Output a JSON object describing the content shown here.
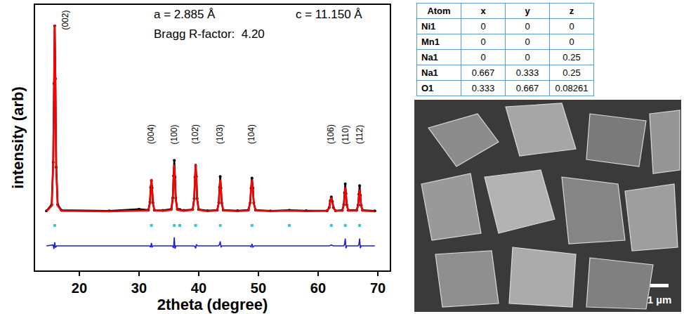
{
  "chart_data": {
    "type": "line",
    "xlabel": "2theta (degree)",
    "ylabel": "intensity (arb)",
    "annotations": [
      "a = 2.885 Å",
      "c = 11.150 Å",
      "Bragg R-factor:  4.20"
    ],
    "xlim": [
      12.6,
      72
    ],
    "xticks": [
      20,
      30,
      40,
      50,
      60,
      70
    ],
    "ylim": [
      0,
      108
    ],
    "yticks": [],
    "tick_labels": "x",
    "grid": false,
    "series": [
      {
        "type": "scatter",
        "marker": "circle",
        "line_style": "solid",
        "color": "#000000",
        "x": [
          14.5,
          15.38,
          15.63,
          15.76,
          15.88,
          16.0,
          16.13,
          16.38,
          17,
          25,
          30,
          31.58,
          31.83,
          31.96,
          32.08,
          32.2,
          32.33,
          32.58,
          34,
          35.41,
          35.66,
          35.79,
          35.91,
          36.03,
          36.16,
          36.41,
          36.83,
          37.5,
          38.99,
          39.24,
          39.37,
          39.49,
          39.61,
          39.74,
          39.99,
          41.5,
          43.11,
          43.36,
          43.49,
          43.61,
          43.73,
          43.86,
          44.11,
          46.5,
          48.32,
          48.62,
          48.77,
          48.92,
          49.07,
          49.22,
          49.52,
          52,
          55.17,
          58,
          61.51,
          61.86,
          62.03,
          62.21,
          62.39,
          62.56,
          62.91,
          64.05,
          64.3,
          64.43,
          64.55,
          64.67,
          64.8,
          65.05,
          66.45,
          66.7,
          66.83,
          66.95,
          67.07,
          67.2,
          67.45,
          69.5
        ],
        "values": [
          24.2,
          26.8,
          44,
          76,
          99.5,
          78,
          42,
          26.8,
          24.5,
          24.2,
          24.9,
          24.6,
          27.8,
          33.8,
          36.5,
          33.6,
          27.6,
          24.5,
          24.4,
          24.9,
          29.5,
          38.5,
          44.8,
          38,
          29.4,
          24.9,
          24.8,
          24.4,
          24.8,
          29.2,
          38,
          42.6,
          38.2,
          29.3,
          24.8,
          24.3,
          24.6,
          27.6,
          33.8,
          38.2,
          33.5,
          27.4,
          24.6,
          24.3,
          24.6,
          27.5,
          33.4,
          37.6,
          33.6,
          27.5,
          24.6,
          24.2,
          24.5,
          24.3,
          24.3,
          25.6,
          28.3,
          29.9,
          28.1,
          25.6,
          24.3,
          24.5,
          26.8,
          31.6,
          35.2,
          31.2,
          26.7,
          24.5,
          24.5,
          26.6,
          31,
          34.5,
          30.6,
          26.5,
          24.5,
          24.2
        ]
      },
      {
        "type": "line",
        "line_style": "solid",
        "color": "#ff0000",
        "x": [
          14.5,
          15.38,
          15.63,
          15.76,
          15.88,
          16.0,
          16.13,
          16.38,
          17,
          25,
          30,
          31.58,
          31.83,
          31.96,
          32.08,
          32.2,
          32.33,
          32.58,
          34,
          35.41,
          35.66,
          35.79,
          35.91,
          36.03,
          36.16,
          36.41,
          36.83,
          37.5,
          38.99,
          39.24,
          39.37,
          39.49,
          39.61,
          39.74,
          39.99,
          41.5,
          43.11,
          43.36,
          43.49,
          43.61,
          43.73,
          43.86,
          44.11,
          46.5,
          48.32,
          48.62,
          48.77,
          48.92,
          49.07,
          49.22,
          49.52,
          52,
          55.17,
          58,
          61.51,
          61.86,
          62.03,
          62.21,
          62.39,
          62.56,
          62.91,
          64.05,
          64.3,
          64.43,
          64.55,
          64.67,
          64.8,
          65.05,
          66.45,
          66.7,
          66.83,
          66.95,
          67.07,
          67.2,
          67.45,
          69.5
        ],
        "values": [
          24,
          26.3,
          43,
          77.2,
          100,
          77.2,
          43,
          26.3,
          24.2,
          24,
          24.3,
          24.4,
          27.3,
          33.2,
          37.2,
          33.2,
          27.3,
          24.4,
          24.2,
          24.6,
          28.8,
          37.3,
          43,
          37.3,
          28.8,
          24.6,
          24.5,
          24.2,
          24.6,
          28.9,
          37.6,
          43.4,
          37.6,
          28.9,
          24.6,
          24.1,
          24.4,
          27.3,
          33.1,
          37,
          33.1,
          27.3,
          24.4,
          24.1,
          24.4,
          27.3,
          33.1,
          37,
          33.1,
          27.3,
          24.4,
          24.1,
          24.3,
          24.1,
          24.2,
          25.4,
          27.9,
          29.6,
          27.9,
          25.4,
          24.2,
          24.3,
          26.5,
          30.9,
          33.8,
          30.9,
          26.5,
          24.3,
          24.3,
          26.3,
          30.3,
          33,
          30.3,
          26.3,
          24.3,
          24
        ]
      },
      {
        "type": "line",
        "line_style": "solid",
        "color": "#1f1fd6",
        "x": [
          14.5,
          15.6,
          15.76,
          15.88,
          16.0,
          16.2,
          31.8,
          31.96,
          32.08,
          32.2,
          32.4,
          35.6,
          35.79,
          35.91,
          36.03,
          36.2,
          39.2,
          39.37,
          39.49,
          39.61,
          39.8,
          43.3,
          43.49,
          43.61,
          43.73,
          43.9,
          48.6,
          48.77,
          48.92,
          49.07,
          49.3,
          61.9,
          62.21,
          62.5,
          64.3,
          64.43,
          64.55,
          64.67,
          64.8,
          66.7,
          66.83,
          66.95,
          67.07,
          67.2,
          69.5
        ],
        "values": [
          10,
          10.4,
          8.8,
          11.5,
          9.3,
          10,
          10,
          9.4,
          11.2,
          9.6,
          10,
          10,
          9.2,
          13.5,
          8.9,
          10,
          10,
          9.7,
          9,
          10.6,
          10,
          10,
          10.6,
          11.8,
          9.4,
          10,
          10,
          9.6,
          10.8,
          9.5,
          10,
          10,
          10.4,
          10,
          10,
          10.7,
          13,
          9,
          10,
          10,
          10.6,
          13,
          9.1,
          10,
          10
        ]
      },
      {
        "type": "scatter",
        "marker": "square",
        "color": "#33cccc",
        "x": [
          15.88,
          32.08,
          35.91,
          36.83,
          39.49,
          43.61,
          48.92,
          55.17,
          62.21,
          64.55,
          66.95
        ],
        "values": [
          18.3,
          18.3,
          18.3,
          18.3,
          18.3,
          18.3,
          18.3,
          18.3,
          18.3,
          18.3,
          18.3
        ]
      }
    ],
    "peak_labels": [
      {
        "x": 15.88,
        "label": "(002)"
      },
      {
        "x": 32.08,
        "label": "(004)"
      },
      {
        "x": 35.91,
        "label": "(100)"
      },
      {
        "x": 39.49,
        "label": "(102)"
      },
      {
        "x": 43.61,
        "label": "(103)"
      },
      {
        "x": 48.92,
        "label": "(104)"
      },
      {
        "x": 62.21,
        "label": "(106)"
      },
      {
        "x": 64.55,
        "label": "(110)"
      },
      {
        "x": 66.95,
        "label": "(112)"
      }
    ]
  },
  "table": {
    "columns": [
      "Atom",
      "x",
      "y",
      "z"
    ],
    "rows": [
      [
        "Ni1",
        "0",
        "0",
        "0"
      ],
      [
        "Mn1",
        "0",
        "0",
        "0"
      ],
      [
        "Na1",
        "0",
        "0",
        "0.25"
      ],
      [
        "Na1",
        "0.667",
        "0.333",
        "0.25"
      ],
      [
        "O1",
        "0.333",
        "0.667",
        "0.08261"
      ]
    ]
  },
  "image": {
    "scale_bar": "1 µm"
  }
}
